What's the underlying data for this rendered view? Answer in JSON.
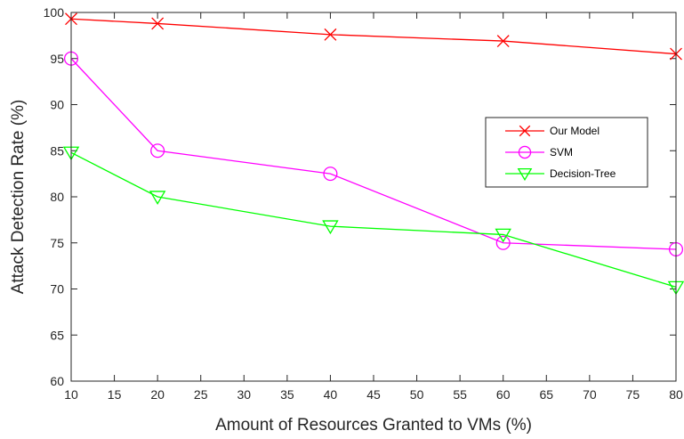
{
  "chart_data": {
    "type": "line",
    "title": "",
    "xlabel": "Amount of Resources Granted to VMs (%)",
    "ylabel": "Attack Detection Rate (%)",
    "x_ticks": [
      "10",
      "15",
      "20",
      "25",
      "30",
      "35",
      "40",
      "45",
      "50",
      "55",
      "60",
      "65",
      "70",
      "75",
      "80"
    ],
    "y_ticks": [
      "60",
      "65",
      "70",
      "75",
      "80",
      "85",
      "90",
      "95",
      "100"
    ],
    "xlim": [
      10,
      80
    ],
    "ylim": [
      60,
      100
    ],
    "grid": false,
    "legend_position": "center-right",
    "series": [
      {
        "name": "Our Model",
        "color": "#ff0000",
        "marker": "x-icon",
        "x": [
          10,
          20,
          40,
          60,
          80
        ],
        "values": [
          99.3,
          98.8,
          97.6,
          96.9,
          95.5
        ]
      },
      {
        "name": "SVM",
        "color": "#ff00ff",
        "marker": "circle-icon",
        "x": [
          10,
          20,
          40,
          60,
          80
        ],
        "values": [
          95.0,
          85.0,
          82.5,
          75.0,
          74.3
        ]
      },
      {
        "name": "Decision-Tree",
        "color": "#00ff00",
        "marker": "triangle-down-icon",
        "x": [
          10,
          20,
          40,
          60,
          80
        ],
        "values": [
          84.8,
          80.0,
          76.8,
          75.9,
          70.2
        ]
      }
    ]
  }
}
